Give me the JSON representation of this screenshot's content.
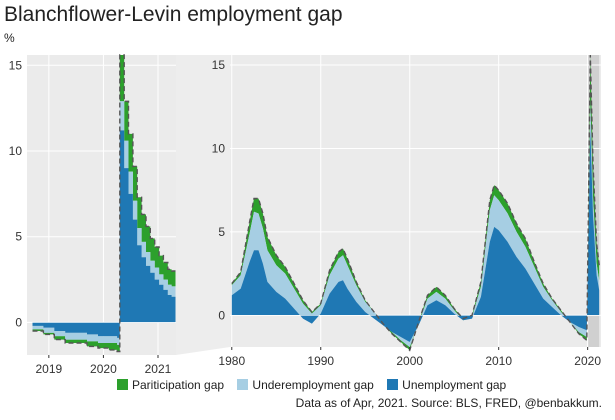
{
  "title": "Blanchflower-Levin employment gap",
  "unit": "%",
  "source": "Data as of Apr, 2021. Source: BLS, FRED, @benbakkum.",
  "colors": {
    "participation": "#2ca02c",
    "underemployment": "#a6cee3",
    "unemployment": "#1f78b4",
    "total_line": "#555555",
    "panel_bg": "#ebebeb",
    "highlight": "#d0d0d0",
    "grid": "#ffffff"
  },
  "chart_data": {
    "type": "area",
    "title": "Blanchflower-Levin employment gap",
    "ylabel": "%",
    "stacked": true,
    "legend_position": "bottom",
    "series": [
      {
        "name": "Pariticipation gap",
        "color": "#2ca02c"
      },
      {
        "name": "Underemployment gap",
        "color": "#a6cee3"
      },
      {
        "name": "Unemployment gap",
        "color": "#1f78b4"
      }
    ],
    "panels": [
      {
        "id": "zoom",
        "xlim": [
          2018.6,
          2021.33
        ],
        "ylim": [
          -1.9,
          15.6
        ],
        "xticks": [
          2019,
          2020,
          2021
        ],
        "yticks": [
          0,
          5,
          10,
          15
        ],
        "grid": true,
        "x": [
          2018.7,
          2018.9,
          2019.1,
          2019.3,
          2019.5,
          2019.7,
          2019.9,
          2020.1,
          2020.25,
          2020.3,
          2020.38,
          2020.46,
          2020.54,
          2020.62,
          2020.7,
          2020.78,
          2020.86,
          2020.94,
          2021.02,
          2021.1,
          2021.18,
          2021.25
        ],
        "unemployment": [
          -0.2,
          -0.3,
          -0.5,
          -0.6,
          -0.6,
          -0.7,
          -0.8,
          -0.8,
          -0.9,
          11.2,
          9.0,
          7.5,
          6.0,
          4.5,
          3.8,
          3.3,
          2.9,
          2.5,
          2.2,
          1.9,
          1.6,
          1.5
        ],
        "underemployment": [
          -0.2,
          -0.3,
          -0.3,
          -0.4,
          -0.4,
          -0.4,
          -0.4,
          -0.4,
          -0.4,
          1.7,
          1.6,
          1.3,
          1.1,
          1.0,
          0.9,
          0.8,
          0.7,
          0.7,
          0.6,
          0.6,
          0.6,
          0.6
        ],
        "participation": [
          -0.1,
          -0.1,
          -0.2,
          -0.2,
          -0.2,
          -0.3,
          -0.3,
          -0.4,
          -0.4,
          2.7,
          2.3,
          2.2,
          2.0,
          1.8,
          1.6,
          1.5,
          1.3,
          1.2,
          1.1,
          1.0,
          0.9,
          0.9
        ]
      },
      {
        "id": "full",
        "xlim": [
          1979.8,
          2021.5
        ],
        "ylim": [
          -1.9,
          15.6
        ],
        "xticks": [
          1980,
          1990,
          2000,
          2010,
          2020
        ],
        "yticks": [
          0,
          5,
          10,
          15
        ],
        "grid": true,
        "highlight": [
          2020.0,
          2021.3
        ],
        "x": [
          1980,
          1981,
          1982,
          1982.5,
          1983,
          1983.5,
          1984,
          1985,
          1986,
          1987,
          1988,
          1989,
          1990,
          1991,
          1992,
          1992.5,
          1993,
          1994,
          1995,
          1996,
          1997,
          1998,
          1999,
          2000,
          2001,
          2002,
          2003,
          2004,
          2005,
          2006,
          2007,
          2008,
          2009,
          2009.5,
          2010,
          2011,
          2012,
          2013,
          2014,
          2015,
          2016,
          2017,
          2018,
          2019,
          2019.9,
          2020.3,
          2020.6,
          2021,
          2021.3
        ],
        "unemployment": [
          1.2,
          1.6,
          3.2,
          3.9,
          3.9,
          3.1,
          2.0,
          1.4,
          1.0,
          0.4,
          -0.2,
          -0.5,
          0.1,
          1.3,
          2.0,
          2.1,
          1.6,
          0.8,
          0.2,
          -0.2,
          -0.6,
          -1.0,
          -1.3,
          -1.6,
          -0.6,
          0.6,
          0.9,
          0.6,
          0.1,
          -0.3,
          -0.2,
          1.1,
          4.4,
          5.3,
          5.1,
          4.4,
          3.5,
          2.8,
          1.9,
          1.0,
          0.5,
          0.0,
          -0.4,
          -0.7,
          -0.9,
          11.2,
          6.0,
          2.4,
          1.5
        ],
        "underemployment": [
          0.6,
          0.8,
          1.7,
          2.3,
          2.2,
          2.1,
          1.9,
          1.6,
          1.5,
          1.2,
          0.9,
          0.6,
          0.5,
          1.1,
          1.4,
          1.5,
          1.4,
          1.0,
          0.6,
          0.4,
          0.2,
          0.0,
          -0.2,
          -0.3,
          0.1,
          0.4,
          0.5,
          0.4,
          0.2,
          0.0,
          0.1,
          0.6,
          1.9,
          1.9,
          1.8,
          1.7,
          1.5,
          1.3,
          1.0,
          0.7,
          0.4,
          0.2,
          0.0,
          -0.3,
          -0.4,
          1.7,
          1.1,
          0.7,
          0.6
        ],
        "participation": [
          0.1,
          0.2,
          0.7,
          0.8,
          0.9,
          0.9,
          0.8,
          0.6,
          0.4,
          0.3,
          0.2,
          0.1,
          0.1,
          0.3,
          0.4,
          0.4,
          0.4,
          0.2,
          0.1,
          0.0,
          -0.1,
          -0.1,
          -0.1,
          -0.2,
          0.1,
          0.2,
          0.3,
          0.2,
          0.1,
          0.1,
          0.1,
          0.3,
          0.6,
          0.6,
          0.6,
          0.6,
          0.5,
          0.5,
          0.3,
          0.2,
          0.1,
          0.1,
          0.0,
          -0.1,
          -0.2,
          2.7,
          2.0,
          1.2,
          0.9
        ]
      }
    ]
  }
}
